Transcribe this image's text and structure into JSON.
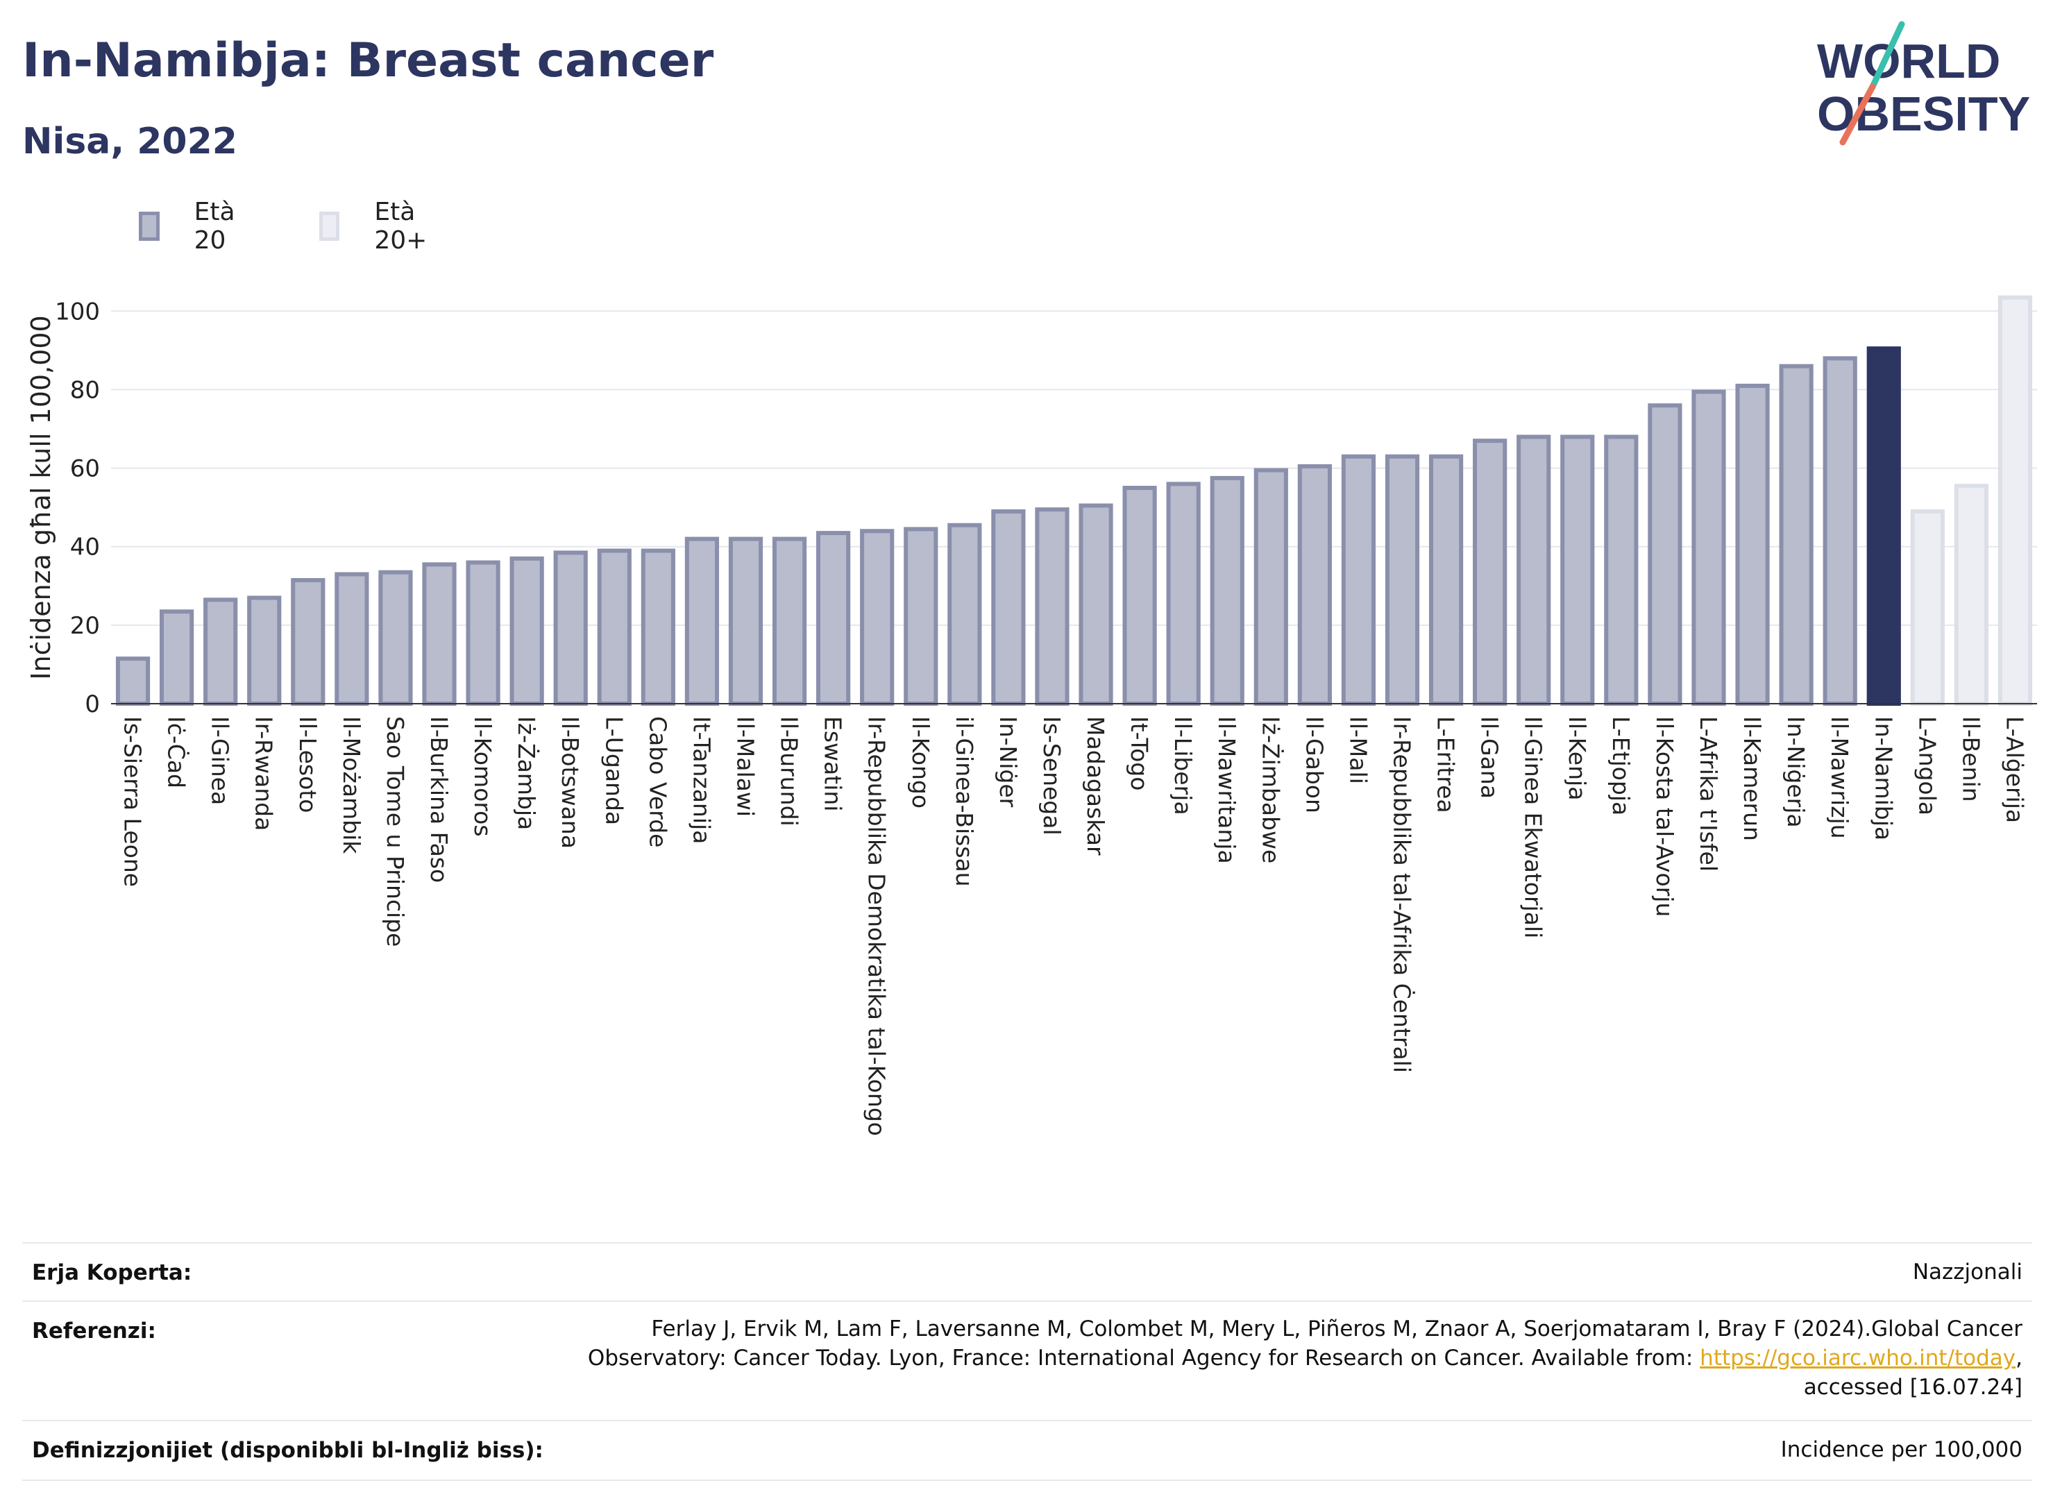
{
  "header": {
    "title": "In-Namibja: Breast cancer",
    "subtitle": "Nisa, 2022"
  },
  "logo": {
    "line1": "WORLD",
    "line2": "OBESITY",
    "accent_colors": [
      "#3bbfad",
      "#e8735a"
    ]
  },
  "legend": [
    {
      "label": "Età 20",
      "color": "#b9bccd",
      "border": "#8a8fab"
    },
    {
      "label": "Età 20+",
      "color": "#eceef3",
      "border": "#dcdfe7"
    }
  ],
  "chart_data": {
    "type": "bar",
    "ylabel": "Inċidenza għal kull 100,000",
    "ylim": [
      0,
      105
    ],
    "yticks": [
      0,
      20,
      40,
      60,
      80,
      100
    ],
    "grid": true,
    "categories": [
      "Is-Sierra Leone",
      "Iċ-Ċad",
      "Il-Ginea",
      "Ir-Rwanda",
      "Il-Lesoto",
      "Il-Możambik",
      "Sao Tome u Principe",
      "Il-Burkina Faso",
      "Il-Komoros",
      "Iż-Żambja",
      "Il-Botswana",
      "L-Uganda",
      "Cabo Verde",
      "It-Tanzanija",
      "Il-Malawi",
      "Il-Burundi",
      "Eswatini",
      "Ir-Repubblika Demokratika tal-Kongo",
      "Il-Kongo",
      "il-Ginea-Bissau",
      "In-Niġer",
      "Is-Senegal",
      "Madagaskar",
      "It-Togo",
      "Il-Liberja",
      "Il-Mawritanja",
      "Iż-Żimbabwe",
      "Il-Gabon",
      "Il-Mali",
      "Ir-Repubblika tal-Afrika Ċentrali",
      "L-Eritrea",
      "Il-Gana",
      "Il-Ginea Ekwatorjali",
      "Il-Kenja",
      "L-Etjopja",
      "Il-Kosta tal-Avorju",
      "L-Afrika t'Isfel",
      "Il-Kamerun",
      "In-Niġerja",
      "Il-Mawrizju",
      "In-Namibja",
      "L-Angola",
      "Il-Benin",
      "L-Alġerija"
    ],
    "values": [
      12,
      24,
      27,
      27.5,
      32,
      33.5,
      34,
      36,
      36.5,
      37.5,
      39,
      39.5,
      39.5,
      42.5,
      42.5,
      42.5,
      44,
      44.5,
      45,
      46,
      49.5,
      50,
      51,
      55.5,
      56.5,
      58,
      60,
      61,
      63.5,
      63.5,
      63.5,
      67.5,
      68.5,
      68.5,
      68.5,
      76.5,
      80,
      81.5,
      86.5,
      88.5,
      91,
      49.5,
      56,
      104
    ],
    "groups": [
      "Età 20",
      "Età 20",
      "Età 20",
      "Età 20",
      "Età 20",
      "Età 20",
      "Età 20",
      "Età 20",
      "Età 20",
      "Età 20",
      "Età 20",
      "Età 20",
      "Età 20",
      "Età 20",
      "Età 20",
      "Età 20",
      "Età 20",
      "Età 20",
      "Età 20",
      "Età 20",
      "Età 20",
      "Età 20",
      "Età 20",
      "Età 20",
      "Età 20",
      "Età 20",
      "Età 20",
      "Età 20",
      "Età 20",
      "Età 20",
      "Età 20",
      "Età 20",
      "Età 20",
      "Età 20",
      "Età 20",
      "Età 20",
      "Età 20",
      "Età 20",
      "Età 20",
      "Età 20",
      "Età 20",
      "Età 20+",
      "Età 20+",
      "Età 20+"
    ],
    "highlight": "In-Namibja",
    "highlight_color": "#2d3561"
  },
  "info": {
    "coverage_label": "Erja Koperta:",
    "coverage_value": "Nazzjonali",
    "references_label": "Referenzi:",
    "references_line1": "Ferlay J, Ervik M, Lam F, Laversanne M, Colombet M, Mery L, Piñeros M, Znaor A, Soerjomataram I, Bray F (2024).Global Cancer",
    "references_line2": "Observatory: Cancer Today. Lyon, France: International Agency for Research on Cancer. Available from: ",
    "references_link": "https://gco.iarc.who.int/today",
    "references_line2_end": ",",
    "references_line3": "accessed [16.07.24]",
    "definitions_label": "Definizzjonijiet (disponibbli bl-Ingliż biss):",
    "definitions_value": "Incidence per 100,000"
  }
}
